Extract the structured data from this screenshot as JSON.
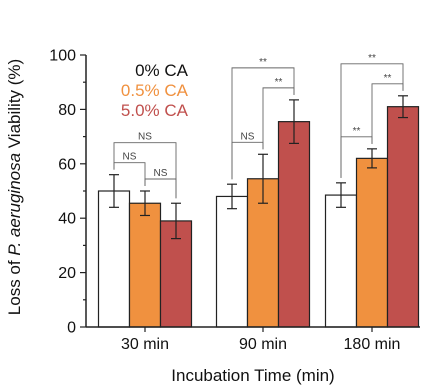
{
  "chart_data": {
    "type": "bar",
    "categories": [
      "30 min",
      "90 min",
      "180 min"
    ],
    "series": [
      {
        "name": "0% CA",
        "color": "#ffffff",
        "text_color": "#111111",
        "values": [
          50,
          48,
          48.5
        ],
        "errors": [
          6,
          4.5,
          4.5
        ]
      },
      {
        "name": "0.5% CA",
        "color": "#f0913f",
        "text_color": "#f0913f",
        "values": [
          45.5,
          54.5,
          62
        ],
        "errors": [
          4.5,
          9,
          3.5
        ]
      },
      {
        "name": "5.0% CA",
        "color": "#c0504d",
        "text_color": "#c0504d",
        "values": [
          39,
          75.5,
          81
        ],
        "errors": [
          6.5,
          8,
          4
        ]
      }
    ],
    "xlabel": "Incubation Time (min)",
    "ylabel": {
      "pre": "Loss of ",
      "italic": "P. aeruginosa",
      "post": " Viability (%)"
    },
    "ylim": [
      0,
      100
    ],
    "yticks": [
      0,
      20,
      40,
      60,
      80,
      100
    ],
    "legend_position": "top-left",
    "grid": false,
    "significance": [
      {
        "group": 0,
        "from": 0,
        "to": 2,
        "label": "NS"
      },
      {
        "group": 0,
        "from": 0,
        "to": 1,
        "label": "NS"
      },
      {
        "group": 0,
        "from": 1,
        "to": 2,
        "label": "NS"
      },
      {
        "group": 1,
        "from": 0,
        "to": 2,
        "label": "**"
      },
      {
        "group": 1,
        "from": 0,
        "to": 1,
        "label": "NS"
      },
      {
        "group": 1,
        "from": 1,
        "to": 2,
        "label": "**"
      },
      {
        "group": 2,
        "from": 0,
        "to": 2,
        "label": "**"
      },
      {
        "group": 2,
        "from": 0,
        "to": 1,
        "label": "**"
      },
      {
        "group": 2,
        "from": 1,
        "to": 2,
        "label": "**"
      }
    ]
  }
}
